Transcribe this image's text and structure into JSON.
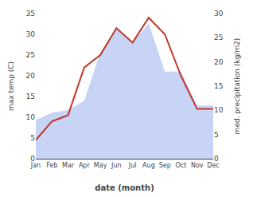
{
  "chart_data": {
    "type": "line",
    "xlabel": "date (month)",
    "ylabel": "max temp (C)",
    "y2label": "med. precipitation (kg/m2)",
    "categories": [
      "Jan",
      "Feb",
      "Mar",
      "Apr",
      "May",
      "Jun",
      "Jul",
      "Aug",
      "Sep",
      "Oct",
      "Nov",
      "Dec"
    ],
    "series": [
      {
        "type": "line",
        "color": "#c0392b",
        "values": [
          4.5,
          9.0,
          10.5,
          22.0,
          25.0,
          31.5,
          28.0,
          34.0,
          30.0,
          20.0,
          12.0,
          12.0
        ]
      },
      {
        "type": "area",
        "axis": "y2",
        "color": "#c8d4f5",
        "values": [
          8.0,
          9.5,
          10.0,
          12.0,
          22.0,
          27.0,
          24.0,
          28.0,
          18.0,
          18.0,
          11.0,
          11.0
        ]
      }
    ],
    "ylim": [
      0,
      35
    ],
    "yticks": [
      0,
      5,
      10,
      15,
      20,
      25,
      30,
      35
    ],
    "y2lim": [
      0,
      30
    ],
    "y2ticks": [
      0,
      5,
      10,
      15,
      20,
      25,
      30
    ],
    "grid": false
  }
}
